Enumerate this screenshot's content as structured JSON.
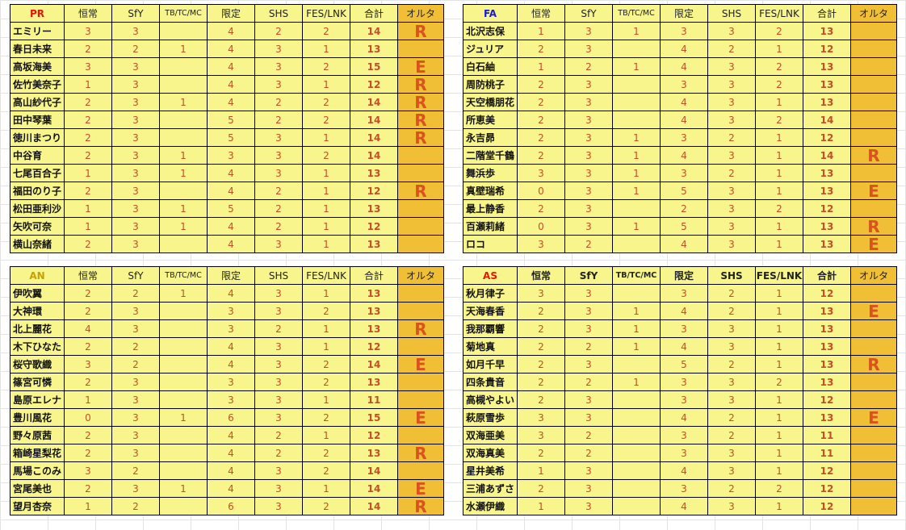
{
  "columns": [
    "恒常",
    "SfY",
    "TB/TC/MC",
    "限定",
    "SHS",
    "FES/LNK",
    "合計",
    "オルタ"
  ],
  "colors": {
    "PR": "#e8140c",
    "FA": "#1a1ad0",
    "AN": "#c8a000",
    "AS": "#e8140c",
    "cell": "#f7f58c",
    "alter": "#f0bf35",
    "value": "#c0502a"
  },
  "tables": [
    {
      "group": "PR",
      "rows": [
        {
          "name": "エミリー",
          "v": [
            "3",
            "3",
            "",
            "4",
            "2",
            "2",
            "14",
            "R"
          ]
        },
        {
          "name": "春日未来",
          "v": [
            "2",
            "2",
            "1",
            "4",
            "3",
            "1",
            "13",
            ""
          ]
        },
        {
          "name": "高坂海美",
          "v": [
            "3",
            "3",
            "",
            "4",
            "3",
            "2",
            "15",
            "E"
          ]
        },
        {
          "name": "佐竹美奈子",
          "v": [
            "1",
            "3",
            "",
            "4",
            "3",
            "1",
            "12",
            "R"
          ]
        },
        {
          "name": "高山紗代子",
          "v": [
            "2",
            "3",
            "1",
            "4",
            "2",
            "2",
            "14",
            "R"
          ]
        },
        {
          "name": "田中琴葉",
          "v": [
            "2",
            "3",
            "",
            "5",
            "2",
            "2",
            "14",
            "R"
          ]
        },
        {
          "name": "徳川まつり",
          "v": [
            "2",
            "3",
            "",
            "5",
            "3",
            "1",
            "14",
            "R"
          ]
        },
        {
          "name": "中谷育",
          "v": [
            "2",
            "3",
            "1",
            "3",
            "3",
            "2",
            "14",
            ""
          ]
        },
        {
          "name": "七尾百合子",
          "v": [
            "1",
            "3",
            "1",
            "4",
            "3",
            "1",
            "13",
            ""
          ]
        },
        {
          "name": "福田のり子",
          "v": [
            "2",
            "3",
            "",
            "4",
            "2",
            "1",
            "12",
            "R"
          ]
        },
        {
          "name": "松田亜利沙",
          "v": [
            "1",
            "3",
            "1",
            "5",
            "2",
            "1",
            "13",
            ""
          ]
        },
        {
          "name": "矢吹可奈",
          "v": [
            "1",
            "3",
            "1",
            "4",
            "2",
            "1",
            "12",
            ""
          ]
        },
        {
          "name": "横山奈緒",
          "v": [
            "2",
            "3",
            "",
            "4",
            "3",
            "1",
            "13",
            ""
          ]
        }
      ]
    },
    {
      "group": "FA",
      "rows": [
        {
          "name": "北沢志保",
          "v": [
            "1",
            "3",
            "1",
            "3",
            "3",
            "2",
            "13",
            ""
          ]
        },
        {
          "name": "ジュリア",
          "v": [
            "2",
            "3",
            "",
            "4",
            "2",
            "1",
            "12",
            ""
          ]
        },
        {
          "name": "白石紬",
          "v": [
            "1",
            "2",
            "1",
            "4",
            "3",
            "2",
            "13",
            ""
          ]
        },
        {
          "name": "周防桃子",
          "v": [
            "2",
            "3",
            "",
            "3",
            "3",
            "2",
            "13",
            ""
          ]
        },
        {
          "name": "天空橋朋花",
          "v": [
            "2",
            "3",
            "",
            "4",
            "3",
            "1",
            "13",
            ""
          ]
        },
        {
          "name": "所恵美",
          "v": [
            "2",
            "3",
            "",
            "4",
            "3",
            "2",
            "14",
            ""
          ]
        },
        {
          "name": "永吉昴",
          "v": [
            "2",
            "3",
            "1",
            "3",
            "2",
            "1",
            "12",
            ""
          ]
        },
        {
          "name": "二階堂千鶴",
          "v": [
            "2",
            "3",
            "1",
            "4",
            "3",
            "1",
            "14",
            "R"
          ]
        },
        {
          "name": "舞浜歩",
          "v": [
            "3",
            "3",
            "1",
            "3",
            "2",
            "1",
            "13",
            ""
          ]
        },
        {
          "name": "真壁瑞希",
          "v": [
            "0",
            "3",
            "1",
            "5",
            "3",
            "1",
            "13",
            "E"
          ]
        },
        {
          "name": "最上静香",
          "v": [
            "2",
            "3",
            "",
            "2",
            "3",
            "2",
            "12",
            ""
          ]
        },
        {
          "name": "百瀬莉緒",
          "v": [
            "0",
            "3",
            "1",
            "5",
            "3",
            "1",
            "13",
            "R"
          ]
        },
        {
          "name": "ロコ",
          "v": [
            "3",
            "2",
            "",
            "4",
            "3",
            "1",
            "13",
            "E"
          ]
        }
      ]
    },
    {
      "group": "AN",
      "rows": [
        {
          "name": "伊吹翼",
          "v": [
            "2",
            "2",
            "1",
            "4",
            "3",
            "1",
            "13",
            ""
          ]
        },
        {
          "name": "大神環",
          "v": [
            "2",
            "3",
            "",
            "3",
            "3",
            "2",
            "13",
            ""
          ]
        },
        {
          "name": "北上麗花",
          "v": [
            "4",
            "3",
            "",
            "3",
            "2",
            "1",
            "13",
            "R"
          ]
        },
        {
          "name": "木下ひなた",
          "v": [
            "2",
            "2",
            "",
            "4",
            "3",
            "1",
            "12",
            ""
          ]
        },
        {
          "name": "桜守歌織",
          "v": [
            "3",
            "2",
            "",
            "4",
            "3",
            "2",
            "14",
            "E"
          ]
        },
        {
          "name": "篠宮可憐",
          "v": [
            "2",
            "3",
            "",
            "3",
            "3",
            "2",
            "13",
            ""
          ]
        },
        {
          "name": "島原エレナ",
          "v": [
            "1",
            "3",
            "",
            "3",
            "3",
            "1",
            "11",
            ""
          ]
        },
        {
          "name": "豊川風花",
          "v": [
            "0",
            "3",
            "1",
            "6",
            "3",
            "2",
            "15",
            "E"
          ]
        },
        {
          "name": "野々原茜",
          "v": [
            "2",
            "3",
            "",
            "4",
            "2",
            "1",
            "12",
            ""
          ]
        },
        {
          "name": "箱崎星梨花",
          "v": [
            "2",
            "3",
            "",
            "4",
            "2",
            "2",
            "13",
            "R"
          ]
        },
        {
          "name": "馬場このみ",
          "v": [
            "3",
            "2",
            "",
            "4",
            "3",
            "2",
            "14",
            ""
          ]
        },
        {
          "name": "宮尾美也",
          "v": [
            "2",
            "3",
            "1",
            "4",
            "3",
            "1",
            "14",
            "E"
          ]
        },
        {
          "name": "望月杏奈",
          "v": [
            "1",
            "2",
            "",
            "6",
            "3",
            "2",
            "14",
            "R"
          ]
        }
      ]
    },
    {
      "group": "AS",
      "rows": [
        {
          "name": "秋月律子",
          "v": [
            "3",
            "3",
            "",
            "3",
            "2",
            "1",
            "12",
            ""
          ]
        },
        {
          "name": "天海春香",
          "v": [
            "2",
            "3",
            "1",
            "4",
            "2",
            "1",
            "13",
            "E"
          ]
        },
        {
          "name": "我那覇響",
          "v": [
            "2",
            "3",
            "1",
            "3",
            "3",
            "1",
            "13",
            ""
          ]
        },
        {
          "name": "菊地真",
          "v": [
            "2",
            "2",
            "1",
            "4",
            "3",
            "1",
            "13",
            ""
          ]
        },
        {
          "name": "如月千早",
          "v": [
            "2",
            "3",
            "",
            "5",
            "2",
            "1",
            "13",
            "R"
          ]
        },
        {
          "name": "四条貴音",
          "v": [
            "2",
            "2",
            "1",
            "3",
            "3",
            "2",
            "13",
            ""
          ]
        },
        {
          "name": "高槻やよい",
          "v": [
            "2",
            "3",
            "",
            "3",
            "3",
            "1",
            "12",
            ""
          ]
        },
        {
          "name": "萩原雪歩",
          "v": [
            "3",
            "3",
            "",
            "4",
            "2",
            "1",
            "13",
            "E"
          ]
        },
        {
          "name": "双海亜美",
          "v": [
            "3",
            "2",
            "",
            "3",
            "2",
            "1",
            "11",
            ""
          ]
        },
        {
          "name": "双海真美",
          "v": [
            "2",
            "2",
            "",
            "3",
            "3",
            "1",
            "11",
            ""
          ]
        },
        {
          "name": "星井美希",
          "v": [
            "1",
            "3",
            "",
            "4",
            "3",
            "1",
            "12",
            ""
          ]
        },
        {
          "name": "三浦あずさ",
          "v": [
            "2",
            "3",
            "",
            "3",
            "2",
            "2",
            "12",
            ""
          ]
        },
        {
          "name": "水瀬伊織",
          "v": [
            "1",
            "3",
            "",
            "4",
            "3",
            "1",
            "12",
            ""
          ]
        }
      ]
    }
  ]
}
